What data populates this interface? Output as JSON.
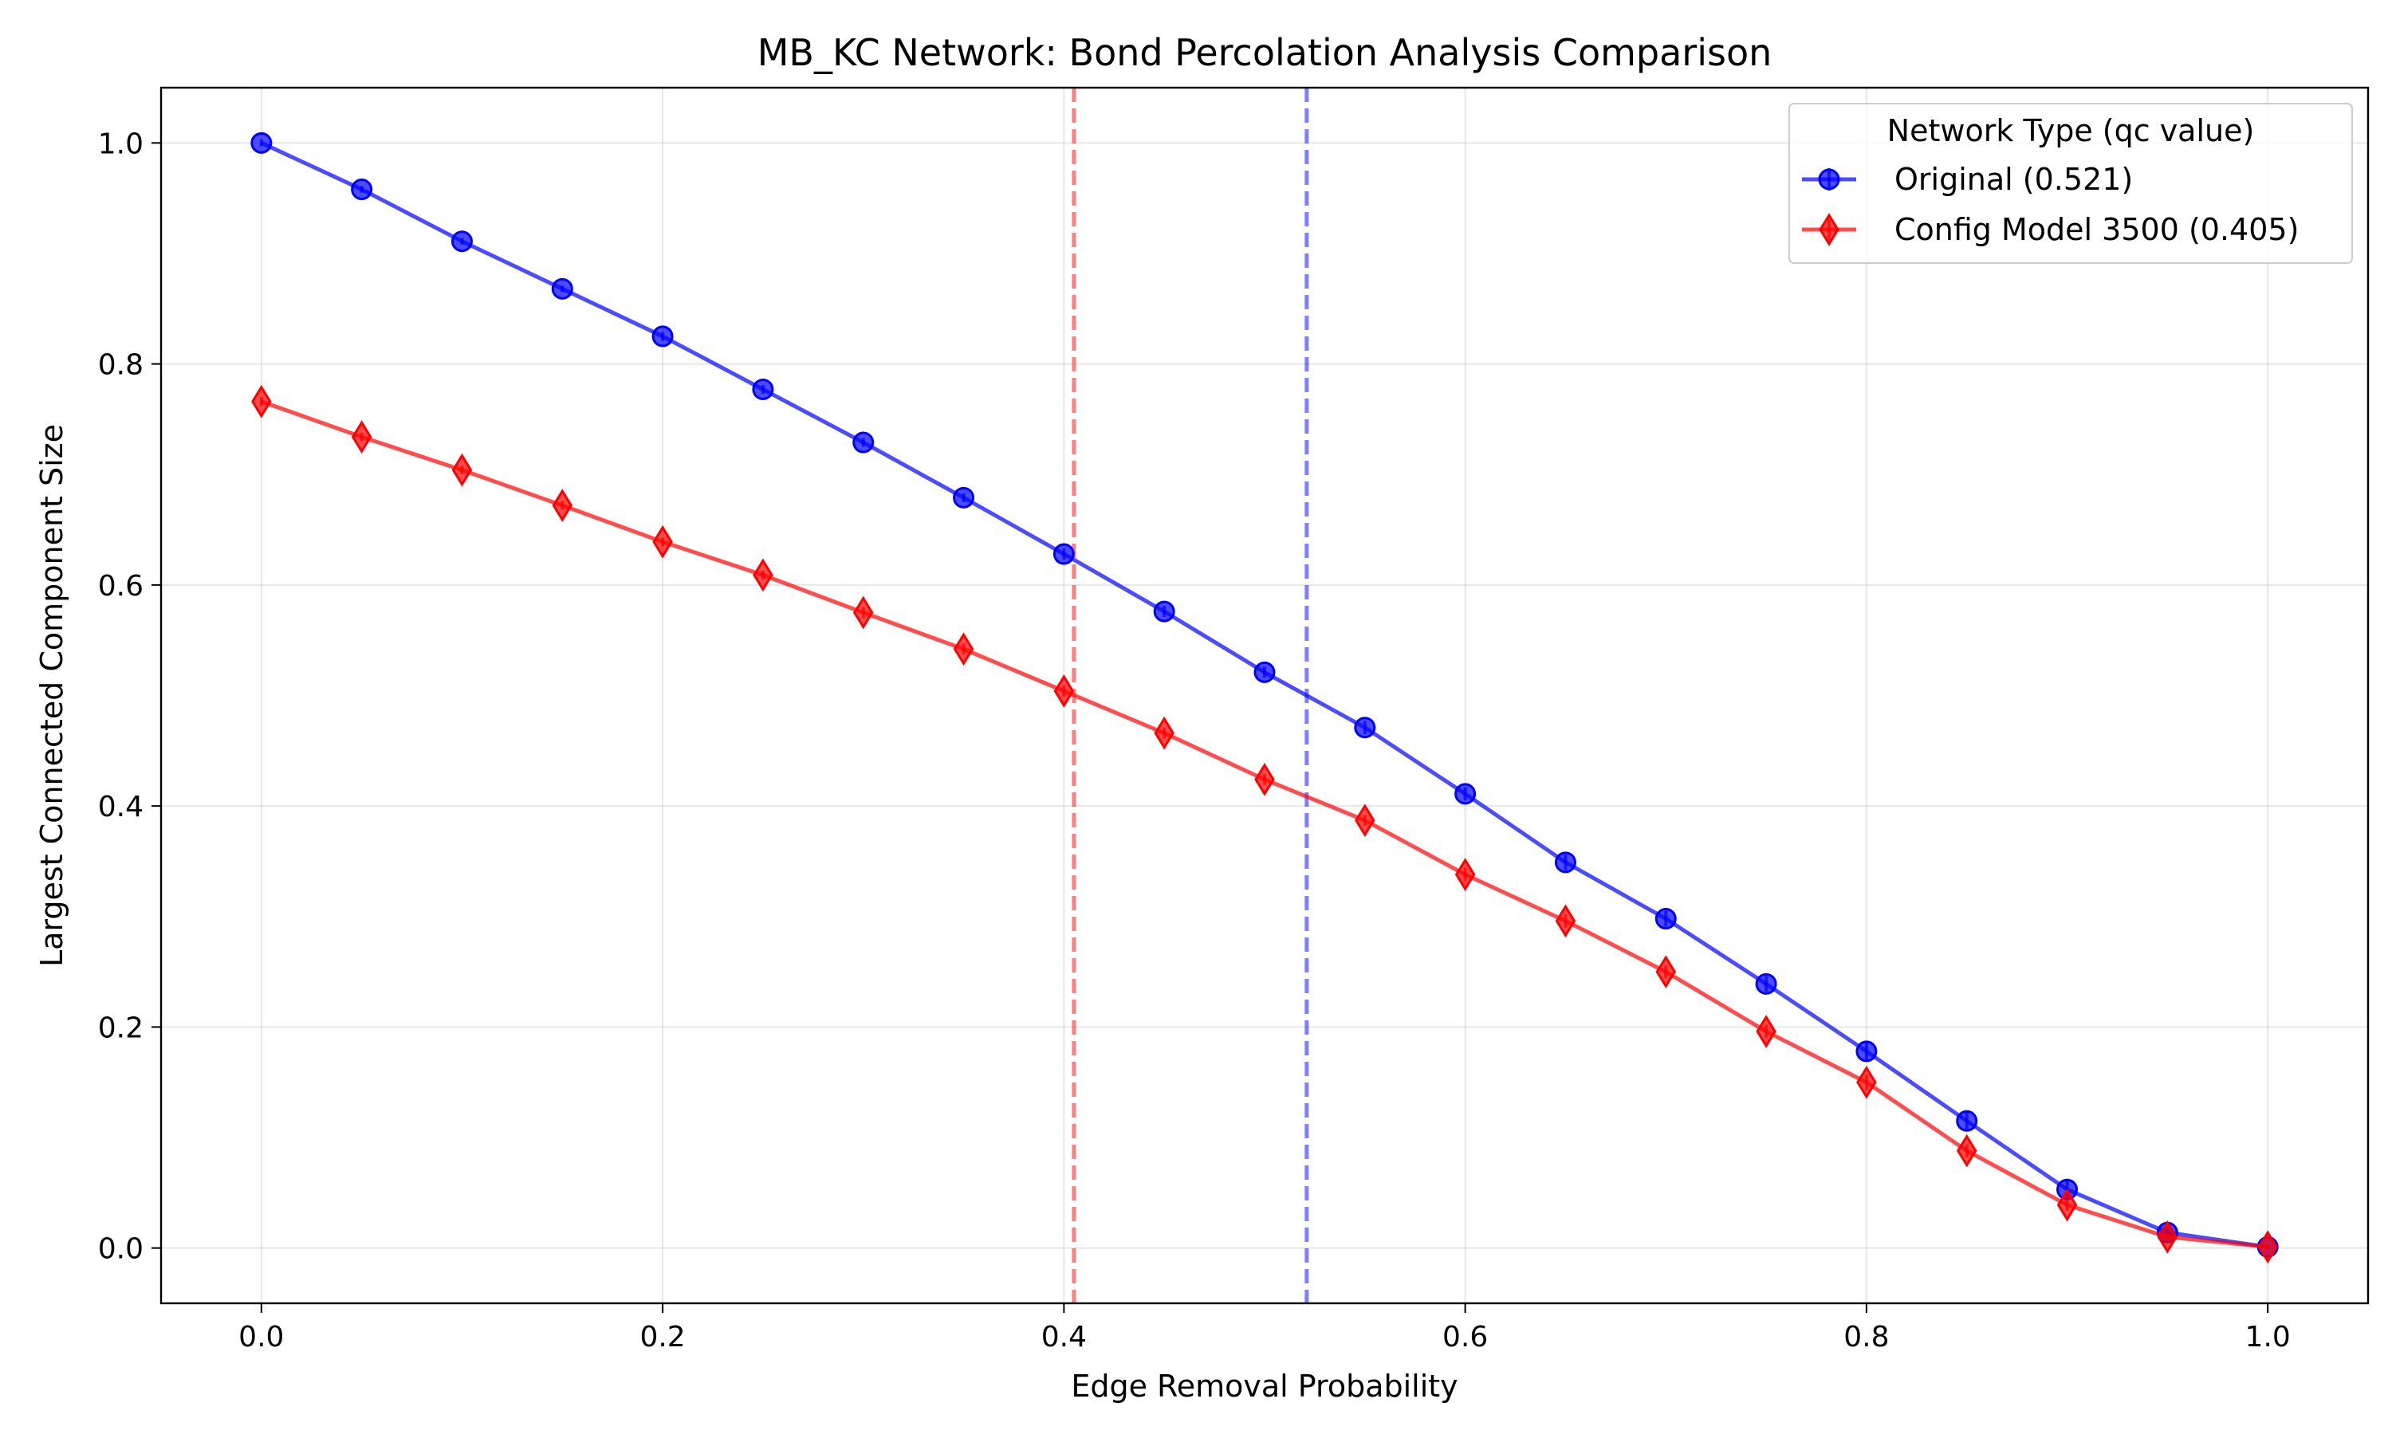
{
  "chart_data": {
    "type": "line",
    "title": "MB_KC Network: Bond Percolation Analysis Comparison",
    "xlabel": "Edge Removal Probability",
    "ylabel": "Largest Connected Component Size",
    "xlim": [
      -0.05,
      1.05
    ],
    "ylim": [
      -0.05,
      1.05
    ],
    "grid": true,
    "legend_placement": "top-right",
    "x_ticks": [
      0.0,
      0.2,
      0.4,
      0.6,
      0.8,
      1.0
    ],
    "x_tick_labels": [
      "0.0",
      "0.2",
      "0.4",
      "0.6",
      "0.8",
      "1.0"
    ],
    "y_ticks": [
      0.0,
      0.2,
      0.4,
      0.6,
      0.8,
      1.0
    ],
    "y_tick_labels": [
      "0.0",
      "0.2",
      "0.4",
      "0.6",
      "0.8",
      "1.0"
    ],
    "legend_title": "Network Type (qc value)",
    "x": [
      0.0,
      0.05,
      0.1,
      0.15,
      0.2,
      0.25,
      0.3,
      0.35,
      0.4,
      0.45,
      0.5,
      0.55,
      0.6,
      0.65,
      0.7,
      0.75,
      0.8,
      0.85,
      0.9,
      0.95,
      1.0
    ],
    "series": [
      {
        "name": "Original (0.521)",
        "color": "#0000ff",
        "marker": "circle",
        "values": [
          1.0,
          0.958,
          0.911,
          0.868,
          0.825,
          0.777,
          0.729,
          0.679,
          0.628,
          0.576,
          0.521,
          0.471,
          0.411,
          0.349,
          0.298,
          0.239,
          0.178,
          0.115,
          0.053,
          0.014,
          0.001
        ],
        "error": [
          0.003,
          0.003,
          0.003,
          0.003,
          0.004,
          0.004,
          0.004,
          0.004,
          0.005,
          0.005,
          0.005,
          0.006,
          0.006,
          0.007,
          0.007,
          0.007,
          0.008,
          0.008,
          0.009,
          0.005,
          0.002
        ]
      },
      {
        "name": "Config Model 3500 (0.405)",
        "color": "#ff0000",
        "marker": "thin_diamond",
        "values": [
          0.766,
          0.734,
          0.704,
          0.672,
          0.639,
          0.609,
          0.575,
          0.542,
          0.504,
          0.466,
          0.424,
          0.387,
          0.338,
          0.296,
          0.25,
          0.196,
          0.15,
          0.088,
          0.039,
          0.01,
          0.001
        ],
        "error": [
          0.004,
          0.004,
          0.004,
          0.004,
          0.004,
          0.004,
          0.005,
          0.005,
          0.005,
          0.005,
          0.005,
          0.005,
          0.006,
          0.006,
          0.006,
          0.006,
          0.007,
          0.006,
          0.005,
          0.003,
          0.001
        ]
      }
    ],
    "vertical_lines": [
      {
        "x": 0.405,
        "color": "#ff0000"
      },
      {
        "x": 0.521,
        "color": "#0000ff"
      }
    ]
  }
}
